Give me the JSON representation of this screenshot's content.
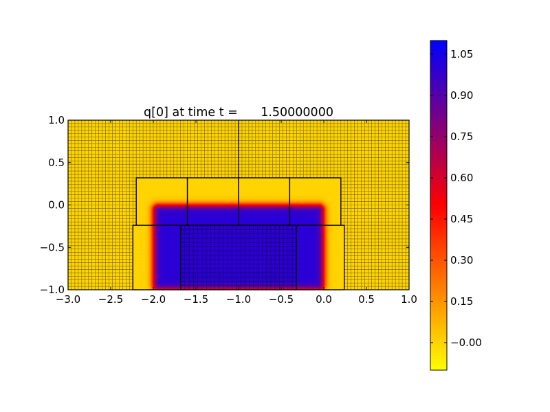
{
  "chart_data": {
    "type": "heatmap",
    "title": "q[0] at time t =      1.50000000",
    "xlabel": "",
    "ylabel": "",
    "xlim": [
      -3.0,
      1.0
    ],
    "ylim": [
      -1.0,
      1.0
    ],
    "xticks": [
      "−3.0",
      "−2.5",
      "−2.0",
      "−1.5",
      "−1.0",
      "−0.5",
      "0.0",
      "0.5",
      "1.0"
    ],
    "xtick_values": [
      -3.0,
      -2.5,
      -2.0,
      -1.5,
      -1.0,
      -0.5,
      0.0,
      0.5,
      1.0
    ],
    "yticks": [
      "−1.0",
      "−0.5",
      "0.0",
      "0.5",
      "1.0"
    ],
    "ytick_values": [
      -1.0,
      -0.5,
      0.0,
      0.5,
      1.0
    ],
    "grid": false,
    "colormap": [
      "#ffff00",
      "#ff0000",
      "#0000ff"
    ],
    "clim": [
      -0.1,
      1.1
    ],
    "colorbar": {
      "location": "right",
      "ticks": [
        "−0.00",
        "0.15",
        "0.30",
        "0.45",
        "0.60",
        "0.75",
        "0.90",
        "1.05"
      ],
      "tick_values": [
        0.0,
        0.15,
        0.3,
        0.45,
        0.6,
        0.75,
        0.9,
        1.05
      ]
    },
    "field": {
      "background_value": 0.0,
      "inner_value": 1.0,
      "inner_region": {
        "x": [
          -2.0,
          0.0
        ],
        "y": [
          -1.0,
          0.0
        ]
      }
    },
    "coarse_grid": {
      "nx": 100,
      "ny": 50
    },
    "level1_patches": [
      {
        "x": [
          -3.0,
          -1.0
        ],
        "y": [
          -1.0,
          1.0
        ]
      },
      {
        "x": [
          -1.0,
          1.0
        ],
        "y": [
          -1.0,
          1.0
        ]
      }
    ],
    "refined_patches": [
      {
        "x": [
          -2.2,
          -1.6
        ],
        "y": [
          -0.24,
          0.32
        ],
        "show_cells": false
      },
      {
        "x": [
          -1.6,
          -1.0
        ],
        "y": [
          -0.24,
          0.32
        ],
        "show_cells": false
      },
      {
        "x": [
          -1.0,
          -0.4
        ],
        "y": [
          -0.24,
          0.32
        ],
        "show_cells": false
      },
      {
        "x": [
          -0.4,
          0.2
        ],
        "y": [
          -0.24,
          0.32
        ],
        "show_cells": false
      },
      {
        "x": [
          -2.24,
          -1.68
        ],
        "y": [
          -1.0,
          -0.24
        ],
        "show_cells": false
      },
      {
        "x": [
          -1.68,
          -0.32
        ],
        "y": [
          -1.0,
          -0.24
        ],
        "show_cells": true,
        "nx": 27,
        "ny": 15
      },
      {
        "x": [
          -0.32,
          0.24
        ],
        "y": [
          -1.0,
          -0.24
        ],
        "show_cells": false
      }
    ]
  }
}
